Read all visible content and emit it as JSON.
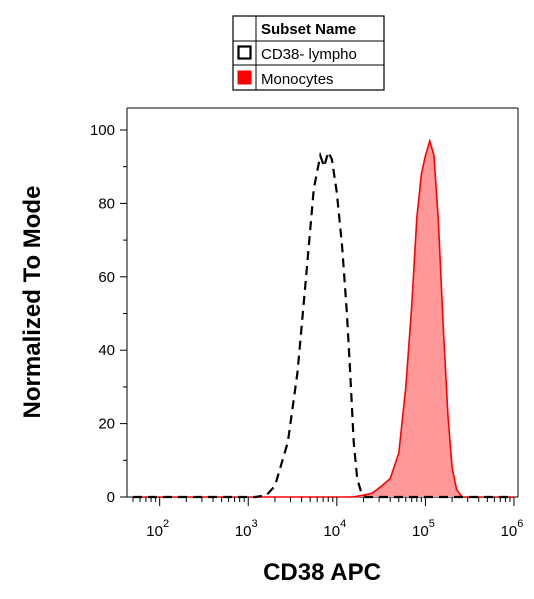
{
  "chart_data": {
    "type": "area",
    "xlabel": "CD38 APC",
    "ylabel": "Normalized To Mode",
    "x_scale": "log",
    "xlim": [
      50,
      1000000
    ],
    "ylim": [
      0,
      104
    ],
    "x_ticks": [
      {
        "value": 100,
        "base": "10",
        "exp": "2"
      },
      {
        "value": 1000,
        "base": "10",
        "exp": "3"
      },
      {
        "value": 10000,
        "base": "10",
        "exp": "4"
      },
      {
        "value": 100000,
        "base": "10",
        "exp": "5"
      },
      {
        "value": 1000000,
        "base": "10",
        "exp": "6"
      }
    ],
    "y_ticks": [
      "0",
      "20",
      "40",
      "60",
      "80",
      "100"
    ],
    "legend": {
      "header": "Subset Name",
      "placement": "top-center",
      "entries": [
        {
          "label": "CD38- lympho",
          "style": "open-square"
        },
        {
          "label": "Monocytes",
          "style": "filled-square",
          "color": "#ff0000"
        }
      ]
    },
    "series": [
      {
        "name": "CD38- lympho",
        "style": "dashed",
        "color": "#000000",
        "points": [
          [
            50,
            0
          ],
          [
            1200,
            0
          ],
          [
            1600,
            0.5
          ],
          [
            2000,
            3
          ],
          [
            2800,
            15
          ],
          [
            3600,
            34
          ],
          [
            4500,
            60
          ],
          [
            5500,
            84
          ],
          [
            6500,
            93
          ],
          [
            7200,
            90
          ],
          [
            8000,
            94
          ],
          [
            8800,
            92
          ],
          [
            10000,
            83
          ],
          [
            11500,
            68
          ],
          [
            13000,
            50
          ],
          [
            14000,
            36
          ],
          [
            15500,
            15
          ],
          [
            17000,
            5
          ],
          [
            19000,
            1
          ],
          [
            21000,
            0
          ],
          [
            1000000,
            0
          ]
        ]
      },
      {
        "name": "Monocytes",
        "style": "filled",
        "color": "#ff0000",
        "fill": "#ff9999",
        "points": [
          [
            50,
            0
          ],
          [
            15000,
            0
          ],
          [
            20000,
            0.5
          ],
          [
            25000,
            1
          ],
          [
            32000,
            3
          ],
          [
            40000,
            5
          ],
          [
            50000,
            12
          ],
          [
            60000,
            30
          ],
          [
            70000,
            52
          ],
          [
            80000,
            76
          ],
          [
            90000,
            88
          ],
          [
            100000,
            93
          ],
          [
            112000,
            97
          ],
          [
            125000,
            93
          ],
          [
            140000,
            75
          ],
          [
            160000,
            45
          ],
          [
            180000,
            22
          ],
          [
            200000,
            8
          ],
          [
            225000,
            2
          ],
          [
            260000,
            0
          ],
          [
            1000000,
            0
          ]
        ]
      }
    ]
  }
}
